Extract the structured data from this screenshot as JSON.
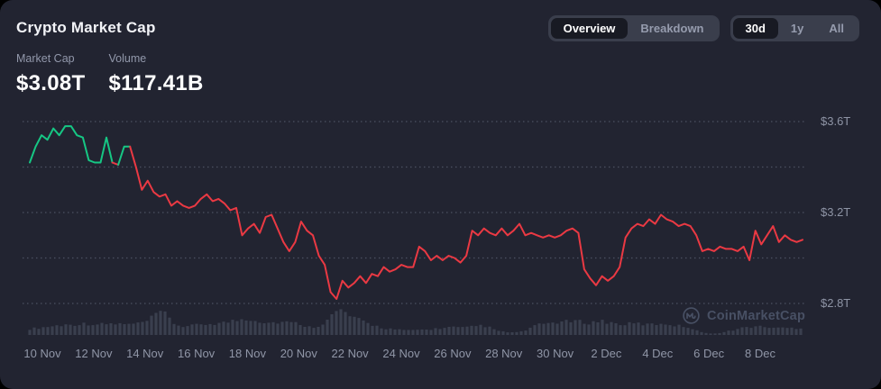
{
  "header": {
    "title": "Crypto Market Cap",
    "tabs": [
      {
        "label": "Overview",
        "selected": true
      },
      {
        "label": "Breakdown",
        "selected": false
      }
    ],
    "ranges": [
      {
        "label": "30d",
        "selected": true
      },
      {
        "label": "1y",
        "selected": false
      },
      {
        "label": "All",
        "selected": false
      }
    ],
    "stats": [
      {
        "label": "Market Cap",
        "value": "$3.08T"
      },
      {
        "label": "Volume",
        "value": "$117.41B"
      }
    ]
  },
  "watermark": {
    "icon": "coinmarketcap-logo",
    "text": "CoinMarketCap"
  },
  "colors": {
    "up": "#16c784",
    "down": "#ea3943",
    "bg": "#222431",
    "grid": "#6f7589",
    "axis_text": "#8e94a5",
    "volume_bar": "#3c4150"
  },
  "chart_data": {
    "type": "line",
    "title": "Crypto Market Cap (30d)",
    "unit": "trillion USD",
    "legend": "none",
    "grid": "dotted-horizontal",
    "x_tick_labels": [
      "10 Nov",
      "12 Nov",
      "14 Nov",
      "16 Nov",
      "18 Nov",
      "20 Nov",
      "22 Nov",
      "24 Nov",
      "26 Nov",
      "28 Nov",
      "30 Nov",
      "2 Dec",
      "4 Dec",
      "6 Dec",
      "8 Dec"
    ],
    "y_axis": {
      "ticks": [
        {
          "value": 3.6,
          "label": "$3.6T"
        },
        {
          "value": 3.4,
          "label": ""
        },
        {
          "value": 3.2,
          "label": "$3.2T"
        },
        {
          "value": 3.0,
          "label": ""
        },
        {
          "value": 2.8,
          "label": "$2.8T"
        }
      ],
      "ylim": [
        2.66,
        3.63
      ]
    },
    "market_cap_series": [
      3.42,
      3.49,
      3.54,
      3.52,
      3.57,
      3.54,
      3.58,
      3.58,
      3.54,
      3.53,
      3.43,
      3.42,
      3.42,
      3.53,
      3.42,
      3.41,
      3.49,
      3.49,
      3.4,
      3.3,
      3.34,
      3.29,
      3.27,
      3.28,
      3.23,
      3.25,
      3.23,
      3.22,
      3.23,
      3.26,
      3.28,
      3.25,
      3.26,
      3.24,
      3.21,
      3.22,
      3.1,
      3.13,
      3.15,
      3.11,
      3.18,
      3.19,
      3.13,
      3.07,
      3.03,
      3.07,
      3.16,
      3.12,
      3.1,
      3.01,
      2.97,
      2.85,
      2.82,
      2.9,
      2.87,
      2.89,
      2.92,
      2.89,
      2.93,
      2.92,
      2.96,
      2.94,
      2.95,
      2.97,
      2.96,
      2.96,
      3.05,
      3.03,
      2.99,
      3.01,
      2.99,
      3.01,
      3.0,
      2.98,
      3.01,
      3.12,
      3.1,
      3.13,
      3.11,
      3.1,
      3.13,
      3.1,
      3.12,
      3.15,
      3.1,
      3.11,
      3.1,
      3.09,
      3.1,
      3.09,
      3.1,
      3.12,
      3.13,
      3.11,
      2.95,
      2.91,
      2.88,
      2.92,
      2.9,
      2.92,
      2.96,
      3.09,
      3.13,
      3.15,
      3.14,
      3.17,
      3.15,
      3.19,
      3.17,
      3.16,
      3.14,
      3.15,
      3.14,
      3.1,
      3.03,
      3.04,
      3.03,
      3.05,
      3.04,
      3.04,
      3.03,
      3.05,
      2.99,
      3.12,
      3.06,
      3.1,
      3.14,
      3.07,
      3.1,
      3.08,
      3.07,
      3.08
    ],
    "color_segments": [
      {
        "color": "up",
        "from": 0,
        "to": 14
      },
      {
        "color": "down",
        "from": 14,
        "to": 15
      },
      {
        "color": "up",
        "from": 15,
        "to": 17
      },
      {
        "color": "down",
        "from": 17,
        "to": 131
      }
    ],
    "volume_profile": [
      [
        33,
        7
      ],
      [
        50,
        9
      ],
      [
        65,
        11
      ],
      [
        80,
        12
      ],
      [
        95,
        13
      ],
      [
        110,
        12
      ],
      [
        125,
        13
      ],
      [
        140,
        12
      ],
      [
        155,
        13
      ],
      [
        165,
        17
      ],
      [
        172,
        22
      ],
      [
        178,
        27
      ],
      [
        185,
        22
      ],
      [
        192,
        14
      ],
      [
        200,
        10
      ],
      [
        210,
        10
      ],
      [
        222,
        12
      ],
      [
        235,
        13
      ],
      [
        248,
        14
      ],
      [
        258,
        16
      ],
      [
        268,
        18
      ],
      [
        275,
        19
      ],
      [
        283,
        17
      ],
      [
        292,
        15
      ],
      [
        300,
        14
      ],
      [
        312,
        15
      ],
      [
        322,
        14
      ],
      [
        332,
        13
      ],
      [
        342,
        9
      ],
      [
        352,
        10
      ],
      [
        362,
        16
      ],
      [
        370,
        24
      ],
      [
        376,
        29
      ],
      [
        382,
        26
      ],
      [
        390,
        20
      ],
      [
        398,
        17
      ],
      [
        406,
        14
      ],
      [
        415,
        11
      ],
      [
        424,
        8
      ],
      [
        433,
        7
      ],
      [
        442,
        6
      ],
      [
        452,
        5
      ],
      [
        462,
        6
      ],
      [
        472,
        6
      ],
      [
        482,
        7
      ],
      [
        492,
        8
      ],
      [
        502,
        9
      ],
      [
        512,
        8
      ],
      [
        522,
        9
      ],
      [
        532,
        11
      ],
      [
        540,
        10
      ],
      [
        548,
        6
      ],
      [
        556,
        4
      ],
      [
        564,
        3
      ],
      [
        572,
        3
      ],
      [
        580,
        4
      ],
      [
        588,
        8
      ],
      [
        596,
        11
      ],
      [
        604,
        13
      ],
      [
        612,
        14
      ],
      [
        620,
        15
      ],
      [
        628,
        15
      ],
      [
        636,
        16
      ],
      [
        644,
        15
      ],
      [
        652,
        14
      ],
      [
        660,
        15
      ],
      [
        668,
        16
      ],
      [
        676,
        14
      ],
      [
        684,
        13
      ],
      [
        692,
        12
      ],
      [
        700,
        13
      ],
      [
        708,
        13
      ],
      [
        716,
        12
      ],
      [
        724,
        12
      ],
      [
        732,
        13
      ],
      [
        740,
        13
      ],
      [
        748,
        11
      ],
      [
        756,
        10
      ],
      [
        764,
        9
      ],
      [
        770,
        7
      ],
      [
        776,
        4
      ],
      [
        782,
        2
      ],
      [
        790,
        2
      ],
      [
        798,
        2
      ],
      [
        806,
        4
      ],
      [
        814,
        6
      ],
      [
        822,
        8
      ],
      [
        830,
        9
      ],
      [
        838,
        10
      ],
      [
        846,
        9
      ],
      [
        854,
        9
      ],
      [
        862,
        8
      ],
      [
        870,
        8
      ],
      [
        878,
        8
      ],
      [
        886,
        8
      ]
    ]
  }
}
